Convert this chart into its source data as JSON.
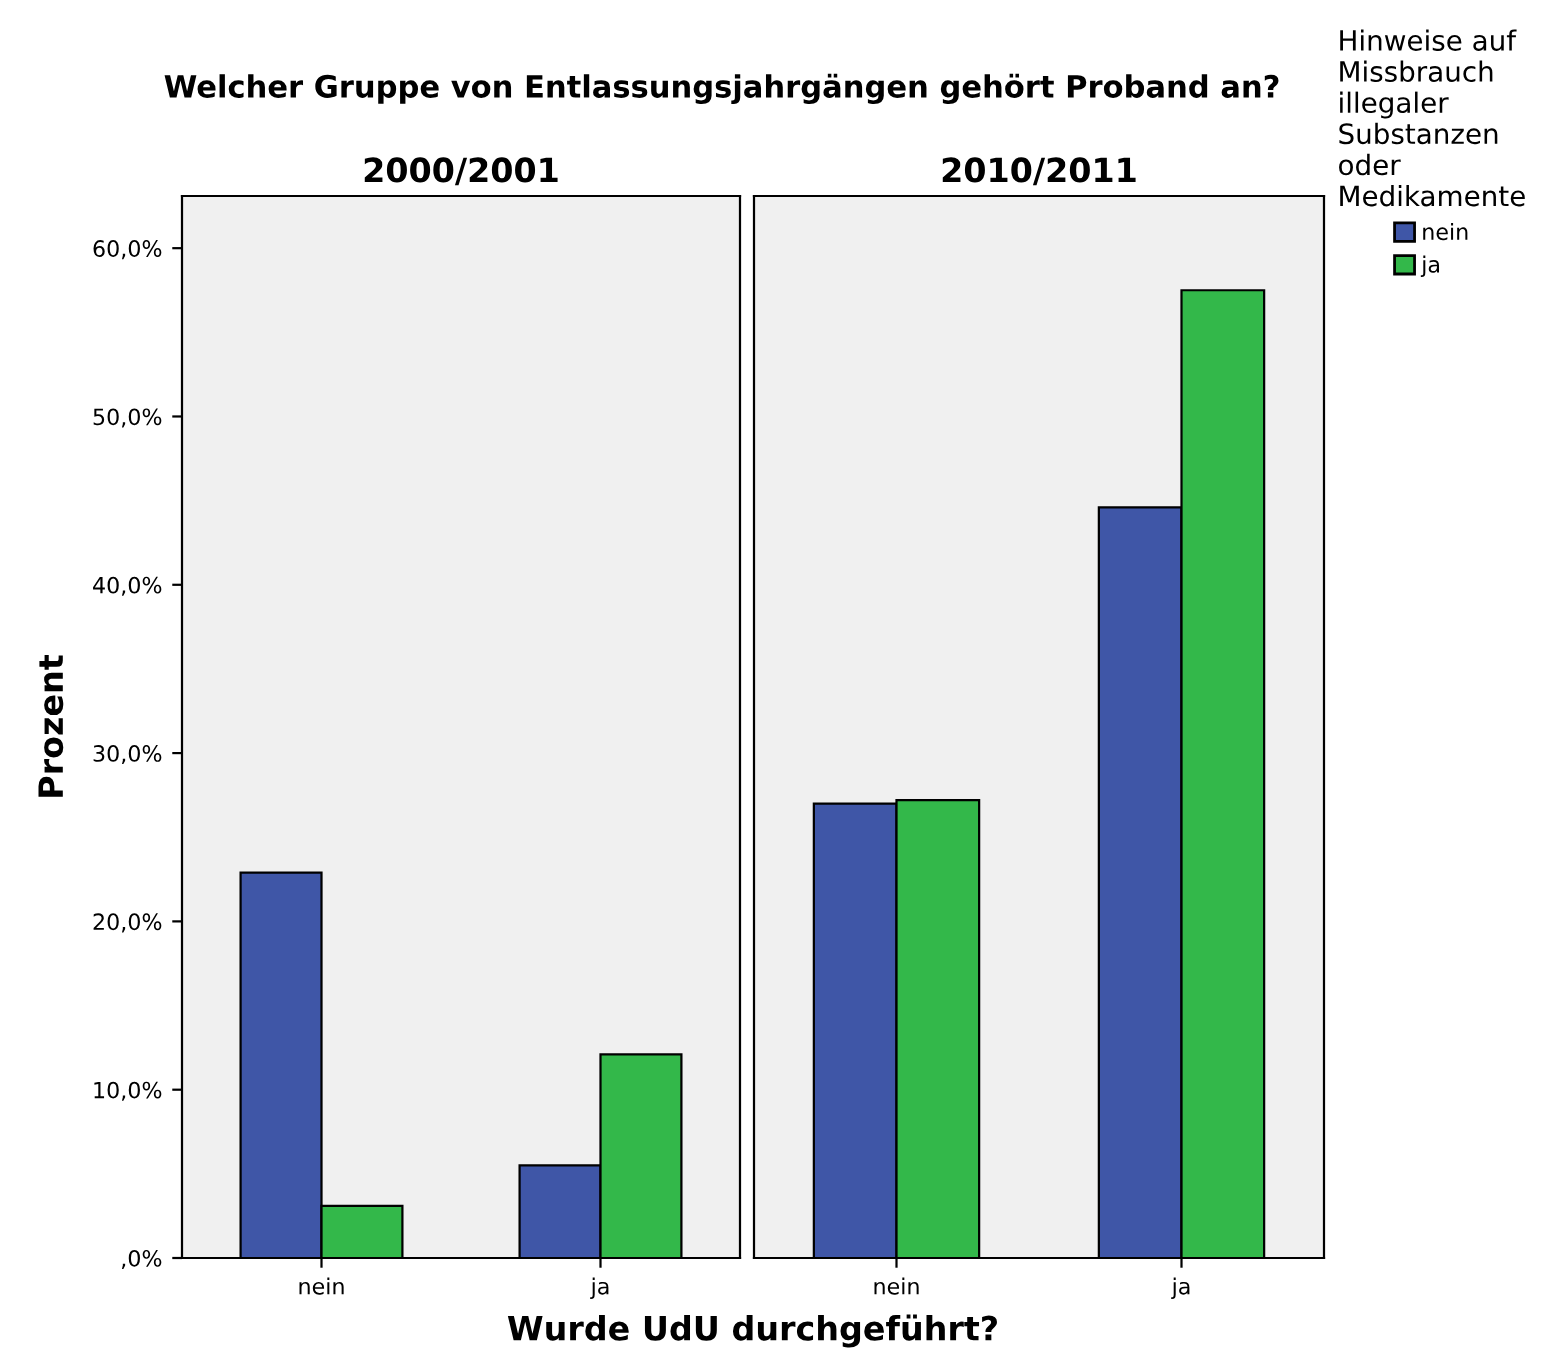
{
  "chart_data": [
    {
      "type": "bar",
      "title": "Welcher Gruppe von Entlassungsjahrgängen gehört Proband an?",
      "subtitle": "2000/2001",
      "xlabel": "Wurde UdU durchgeführt?",
      "ylabel": "Prozent",
      "legend_title": "Hinweise auf\nMissbrauch\nillegaler\nSubstanzen\noder\nMedikamente",
      "legend": "right",
      "categories": [
        "nein",
        "ja"
      ],
      "series": [
        {
          "name": "nein",
          "color": "#3f56a7",
          "values": [
            22.9,
            5.5
          ]
        },
        {
          "name": "ja",
          "color": "#33b84a",
          "values": [
            3.1,
            12.1
          ]
        }
      ],
      "ylim": [
        0,
        63.1
      ],
      "yticks": [
        {
          "value": 0,
          "label": ",0%"
        },
        {
          "value": 10,
          "label": "10,0%"
        },
        {
          "value": 20,
          "label": "20,0%"
        },
        {
          "value": 30,
          "label": "30,0%"
        },
        {
          "value": 40,
          "label": "40,0%"
        },
        {
          "value": 50,
          "label": "50,0%"
        },
        {
          "value": 60,
          "label": "60,0%"
        }
      ],
      "grid": false
    },
    {
      "type": "bar",
      "subtitle": "2010/2011",
      "tick_labels": "x",
      "categories": [
        "nein",
        "ja"
      ],
      "series": [
        {
          "color": "#3f56a7",
          "values": [
            27.0,
            44.6
          ]
        },
        {
          "color": "#33b84a",
          "values": [
            27.2,
            57.5
          ]
        }
      ],
      "ylim": [
        0,
        63.1
      ],
      "grid": false
    }
  ]
}
